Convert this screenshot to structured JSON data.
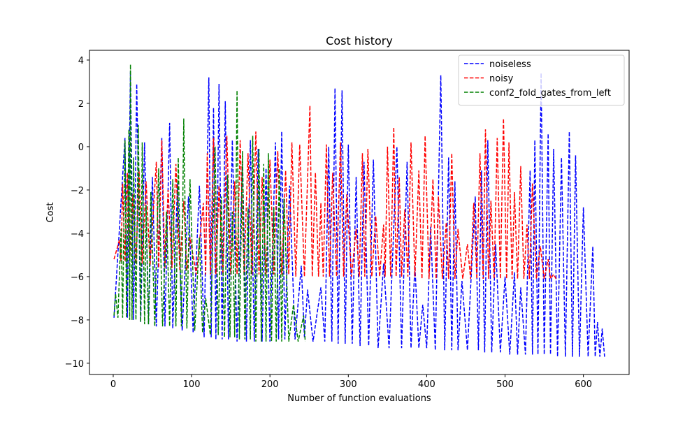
{
  "chart_data": {
    "type": "line",
    "title": "Cost history",
    "xlabel": "Number of function evaluations",
    "ylabel": "Cost",
    "xlim": [
      -30.3,
      658.3
    ],
    "ylim": [
      -10.52,
      4.45
    ],
    "xticks": [
      0,
      100,
      200,
      300,
      400,
      500,
      600
    ],
    "yticks": [
      {
        "value": -10,
        "label": "−10"
      },
      {
        "value": -8,
        "label": "−8"
      },
      {
        "value": -6,
        "label": "−6"
      },
      {
        "value": -4,
        "label": "−4"
      },
      {
        "value": -2,
        "label": "−2"
      },
      0,
      2,
      4
    ],
    "legend": "upper right",
    "linestyle": "dashed",
    "series": [
      {
        "name": "noiseless",
        "color": "#0000ff",
        "x": [
          1,
          15,
          18,
          22,
          26,
          30,
          35,
          40,
          45,
          50,
          55,
          62,
          66,
          72,
          76,
          82,
          88,
          96,
          102,
          110,
          116,
          122,
          125,
          128,
          131,
          135,
          139,
          143,
          147,
          152,
          158,
          165,
          170,
          175,
          180,
          185,
          190,
          195,
          200,
          207,
          211,
          215,
          219,
          225,
          232,
          240,
          244,
          248,
          255,
          265,
          270,
          275,
          279,
          283,
          287,
          292,
          296,
          300,
          305,
          310,
          315,
          320,
          326,
          332,
          338,
          345,
          352,
          362,
          368,
          375,
          380,
          385,
          390,
          395,
          400,
          405,
          411,
          418,
          423,
          428,
          432,
          436,
          440,
          445,
          452,
          462,
          466,
          470,
          474,
          478,
          483,
          488,
          494,
          500,
          506,
          512,
          516,
          520,
          526,
          532,
          535,
          538,
          542,
          546,
          550,
          555,
          558,
          562,
          567,
          572,
          577,
          582,
          586,
          590,
          595,
          600,
          606,
          612,
          615,
          618,
          621,
          624,
          627
        ],
        "values": [
          -7.9,
          0.4,
          -7.9,
          3.5,
          -8,
          2.9,
          -8.1,
          0.2,
          -8.2,
          -1.4,
          -8.3,
          0.4,
          -8.3,
          1.1,
          -8.4,
          -1.7,
          -8.5,
          -2.3,
          -8.6,
          -1.8,
          -8.8,
          3.2,
          -8.8,
          1.8,
          -8.9,
          2.9,
          -8.9,
          2.1,
          -8.9,
          0.3,
          -9,
          -0.8,
          -9,
          0.3,
          -9,
          -0.1,
          -9,
          -1,
          -9,
          0.2,
          -8.9,
          0.7,
          -8.9,
          -1.8,
          -8.9,
          -5.5,
          -8.8,
          -6.6,
          -9,
          -6.5,
          -9,
          0,
          -9,
          2.7,
          -9.1,
          2.6,
          -9.1,
          0.1,
          -9.1,
          -1.4,
          -9.2,
          -0.7,
          -9.2,
          -0.6,
          -9.3,
          -5.4,
          -9.3,
          0,
          -9.3,
          -0.7,
          -9.3,
          -5.5,
          -9.3,
          -7.3,
          -9.3,
          -3.7,
          -9.4,
          3.3,
          -9.4,
          -0.5,
          -9.4,
          -1.6,
          -9.4,
          -6.2,
          -9.4,
          -2.3,
          -9.4,
          -1.1,
          -9.5,
          0.3,
          -9.5,
          -4.5,
          -9.5,
          -6,
          -9.6,
          -5.8,
          -9.6,
          -6.5,
          -9.6,
          -1.1,
          -9.6,
          0.3,
          -9.6,
          3.4,
          -9.6,
          0.6,
          -9.6,
          -0.1,
          -9.7,
          -0.5,
          -9.7,
          0.7,
          -9.7,
          -0.4,
          -9.7,
          -2.8,
          -9.7,
          -4.6,
          -9.7,
          -8.1,
          -9.7,
          -8.4,
          -9.7
        ]
      },
      {
        "name": "noisy",
        "color": "#ff0000",
        "x": [
          1,
          8,
          10,
          12,
          15,
          18,
          21,
          25,
          29,
          33,
          37,
          42,
          47,
          55,
          58,
          62,
          66,
          70,
          75,
          80,
          85,
          90,
          94,
          98,
          106,
          115,
          118,
          120,
          124,
          128,
          131,
          135,
          140,
          145,
          150,
          155,
          158,
          162,
          167,
          172,
          177,
          182,
          186,
          190,
          195,
          200,
          205,
          210,
          215,
          220,
          224,
          228,
          233,
          238,
          244,
          251,
          254,
          258,
          262,
          265,
          268,
          272,
          276,
          280,
          285,
          290,
          294,
          298,
          304,
          310,
          314,
          318,
          321,
          325,
          330,
          335,
          340,
          345,
          347,
          350,
          354,
          358,
          361,
          365,
          368,
          372,
          376,
          380,
          385,
          390,
          394,
          398,
          403,
          408,
          412,
          415,
          420,
          425,
          428,
          432,
          436,
          440,
          446,
          452,
          456,
          460,
          464,
          468,
          472,
          475,
          479,
          482,
          486,
          490,
          494,
          498,
          502,
          505,
          509,
          512,
          516,
          520,
          524,
          528,
          531,
          535,
          540,
          545,
          550,
          555,
          558,
          562,
          565
        ],
        "values": [
          -5.2,
          -4.3,
          -5.3,
          -1.7,
          -5.3,
          -1.2,
          -5.3,
          -2.2,
          -5.4,
          -1.1,
          -5.4,
          -1.6,
          -5.5,
          -0.7,
          -5.6,
          0.3,
          -5.6,
          -2,
          -5.6,
          -0.8,
          -5.7,
          -2.5,
          -5.7,
          -4.2,
          -5.9,
          -2.6,
          -5.9,
          -0.3,
          -5.9,
          0.4,
          -5.9,
          -1.8,
          -5.9,
          0.5,
          -5.9,
          -1.6,
          -5.9,
          0.3,
          -5.9,
          -0.3,
          -5.9,
          0.7,
          -5.9,
          -1.4,
          -5.9,
          -0.6,
          -5.9,
          -0.2,
          -5.9,
          -1.1,
          -5.9,
          0.2,
          -6,
          0.1,
          -6,
          1.9,
          -6,
          -1.2,
          -6,
          -2.6,
          -6,
          0.1,
          -6,
          -1.2,
          -6,
          0.2,
          -6,
          -2.2,
          -6,
          -3.8,
          -6,
          -0.3,
          -6,
          -0.1,
          -6,
          -3.2,
          -6,
          -3.6,
          -6,
          0,
          -6,
          0.9,
          -6,
          -1.4,
          -6,
          -2.9,
          -6,
          0.2,
          -6,
          -1.1,
          -6.1,
          0.5,
          -6.1,
          -1.5,
          -6.1,
          -2.3,
          -6.1,
          -3.5,
          -6.1,
          -0.3,
          -6.1,
          -3.8,
          -6.1,
          -4.5,
          -6.1,
          -2.6,
          -6.1,
          -0.3,
          -6.1,
          0.8,
          -6.1,
          -2.5,
          -6.1,
          0.4,
          -6.1,
          1.3,
          -6.1,
          0.2,
          -6.1,
          -2.1,
          -6.1,
          -0.9,
          -6.1,
          -3.6,
          -6.1,
          -1.7,
          -6.1,
          -4.6,
          -6.1,
          -5.2,
          -6.1,
          -5.9,
          -6.1
        ]
      },
      {
        "name": "conf2_fold_gates_from_left",
        "color": "#008000",
        "x": [
          1,
          3,
          6,
          10,
          12,
          15,
          17,
          20,
          21,
          22,
          24,
          26,
          29,
          32,
          35,
          37,
          40,
          42,
          45,
          48,
          53,
          58,
          63,
          68,
          72,
          76,
          80,
          83,
          87,
          90,
          94,
          98,
          104,
          110,
          114,
          118,
          124,
          130,
          134,
          138,
          142,
          146,
          149,
          152,
          155,
          158,
          161,
          165,
          168,
          172,
          175,
          178,
          182,
          186,
          189,
          192,
          195,
          198,
          202,
          205,
          208,
          212,
          215,
          218,
          224,
          230,
          236,
          243,
          245
        ],
        "values": [
          -7.8,
          -6.8,
          -7.9,
          -3.8,
          -7.9,
          0.3,
          -7.9,
          0.8,
          -8,
          3.8,
          -8,
          -0.5,
          -8,
          1,
          -8.1,
          0.2,
          -8.2,
          -2.7,
          -8.2,
          -2.1,
          -8.3,
          -1,
          -8.3,
          -3,
          -8.3,
          -1.5,
          -8.3,
          -0.5,
          -8.3,
          1.3,
          -8.4,
          -1.5,
          -8.5,
          -4.2,
          -8.6,
          -7,
          -8.7,
          0,
          -8.7,
          -2.3,
          -8.8,
          -1.3,
          -8.8,
          -3,
          -8.8,
          2.6,
          -8.9,
          -0.2,
          -8.9,
          -2.8,
          -8.9,
          0.5,
          -9,
          -0.1,
          -9,
          -0.8,
          -9,
          -0.3,
          -9,
          -2.8,
          -9,
          -1,
          -9,
          -2.4,
          -9,
          -7.3,
          -9,
          -7.8,
          -9
        ]
      }
    ]
  }
}
